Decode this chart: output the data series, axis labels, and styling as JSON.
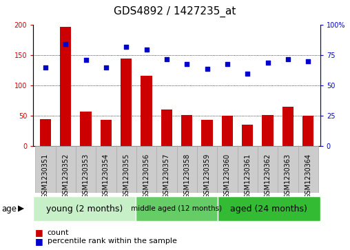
{
  "title": "GDS4892 / 1427235_at",
  "samples": [
    "GSM1230351",
    "GSM1230352",
    "GSM1230353",
    "GSM1230354",
    "GSM1230355",
    "GSM1230356",
    "GSM1230357",
    "GSM1230358",
    "GSM1230359",
    "GSM1230360",
    "GSM1230361",
    "GSM1230362",
    "GSM1230363",
    "GSM1230364"
  ],
  "counts": [
    45,
    197,
    57,
    44,
    145,
    116,
    61,
    52,
    44,
    50,
    36,
    52,
    65,
    50
  ],
  "percentiles": [
    65,
    84,
    71,
    65,
    82,
    80,
    72,
    68,
    64,
    68,
    60,
    69,
    72,
    70
  ],
  "ylim_left": [
    0,
    200
  ],
  "ylim_right": [
    0,
    100
  ],
  "yticks_left": [
    0,
    50,
    100,
    150,
    200
  ],
  "yticks_right": [
    0,
    25,
    50,
    75,
    100
  ],
  "yticklabels_right": [
    "0",
    "25",
    "50",
    "75",
    "100%"
  ],
  "bar_color": "#cc0000",
  "dot_color": "#0000cc",
  "grid_color": "#000000",
  "group_bounds": [
    {
      "start": 0,
      "end": 5,
      "label": "young (2 months)",
      "color": "#c8f0c8"
    },
    {
      "start": 5,
      "end": 9,
      "label": "middle aged (12 months)",
      "color": "#66cc66"
    },
    {
      "start": 9,
      "end": 14,
      "label": "aged (24 months)",
      "color": "#33bb33"
    }
  ],
  "age_label": "age",
  "legend_count_label": "count",
  "legend_pct_label": "percentile rank within the sample",
  "title_fontsize": 11,
  "tick_fontsize": 7,
  "group_label_fontsize_large": 9,
  "group_label_fontsize_small": 7.5,
  "bar_width": 0.55,
  "sample_box_color": "#cccccc",
  "sample_box_edge": "#aaaaaa"
}
